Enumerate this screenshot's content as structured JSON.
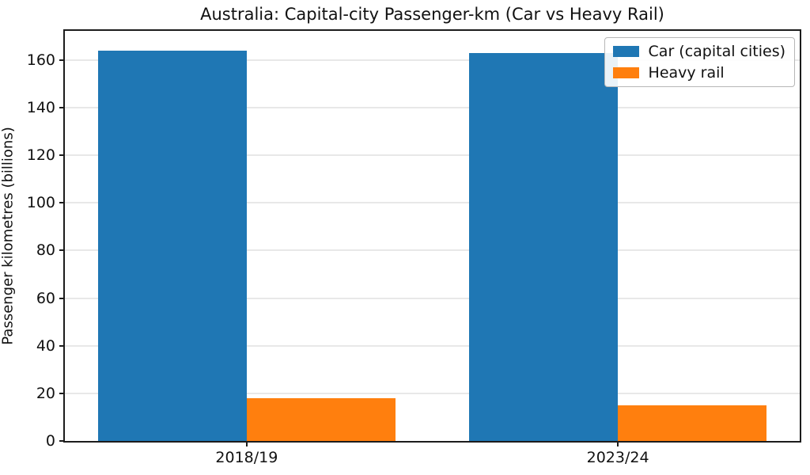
{
  "chart_data": {
    "type": "bar",
    "title": "Australia: Capital-city Passenger-km (Car vs Heavy Rail)",
    "ylabel": "Passenger kilometres (billions)",
    "xlabel": "",
    "categories": [
      "2018/19",
      "2023/24"
    ],
    "series": [
      {
        "name": "Car (capital cities)",
        "color": "#1f77b4",
        "values": [
          164,
          163
        ]
      },
      {
        "name": "Heavy rail",
        "color": "#ff7f0e",
        "values": [
          18,
          15
        ]
      }
    ],
    "yticks": [
      0,
      20,
      40,
      60,
      80,
      100,
      120,
      140,
      160
    ],
    "ylim": [
      0,
      172.2
    ],
    "xlim": [
      -0.49,
      1.49
    ],
    "bar_width": 0.4,
    "grid": "horizontal",
    "legend_position": "upper right",
    "colors": {
      "car": "#1f77b4",
      "heavy_rail": "#ff7f0e",
      "gridline": "#e8e8e8",
      "spine": "#1c1c1c"
    }
  }
}
